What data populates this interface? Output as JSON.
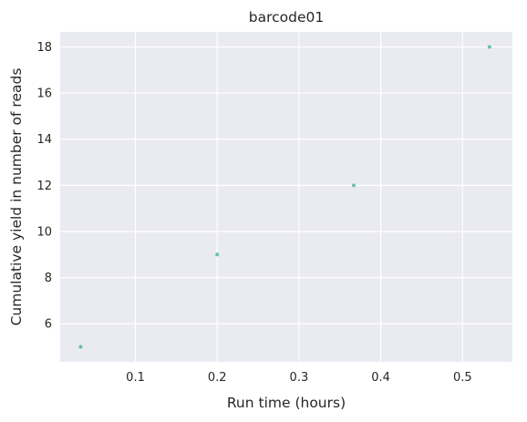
{
  "chart_data": {
    "type": "scatter",
    "title": "barcode01",
    "xlabel": "Run time (hours)",
    "ylabel": "Cumulative yield in number of reads",
    "xlim": [
      0.008,
      0.561
    ],
    "ylim": [
      4.35,
      18.65
    ],
    "xticks": [
      0.1,
      0.2,
      0.3,
      0.4,
      0.5
    ],
    "yticks": [
      6,
      8,
      10,
      12,
      14,
      16,
      18
    ],
    "grid": true,
    "background_color": "#eaeaf2",
    "grid_color": "#ffffff",
    "point_color": "#66c2a5",
    "series": [
      {
        "x": [
          0.033,
          0.2,
          0.367,
          0.533
        ],
        "y": [
          5,
          9,
          12,
          18
        ]
      }
    ]
  }
}
